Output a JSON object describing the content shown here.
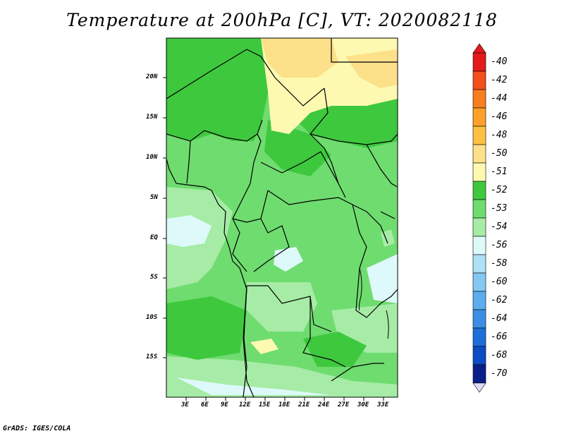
{
  "title": "Temperature at 200hPa [C], VT: 2020082118",
  "footer": "GrADS: IGES/COLA",
  "colorbar": {
    "labels": [
      "-40",
      "-42",
      "-44",
      "-46",
      "-48",
      "-50",
      "-51",
      "-52",
      "-53",
      "-54",
      "-56",
      "-58",
      "-60",
      "-62",
      "-64",
      "-66",
      "-68",
      "-70"
    ],
    "colors": [
      "#e31a1c",
      "#f2501c",
      "#f77f1e",
      "#fba12a",
      "#fdc043",
      "#fde08a",
      "#fdf9b0",
      "#3ec83e",
      "#6fdc6f",
      "#a6eca6",
      "#def9f9",
      "#aee0f6",
      "#84c8f2",
      "#5aaeee",
      "#3b8ee4",
      "#1e6ed8",
      "#0c4cc4",
      "#0b1f8a",
      "#dcdcf8"
    ]
  },
  "axes": {
    "lat_ticks": [
      "20N",
      "15N",
      "10N",
      "5N",
      "EQ",
      "5S",
      "10S",
      "15S"
    ],
    "lon_ticks": [
      "3E",
      "6E",
      "9E",
      "12E",
      "15E",
      "18E",
      "21E",
      "24E",
      "27E",
      "30E",
      "33E"
    ]
  },
  "map": {
    "shading_colors": {
      "c51": "#fdf9b0",
      "c50": "#fde08a",
      "c52": "#3ec83e",
      "c53": "#6fdc6f",
      "c54": "#a6eca6",
      "c56": "#def9f9"
    }
  }
}
